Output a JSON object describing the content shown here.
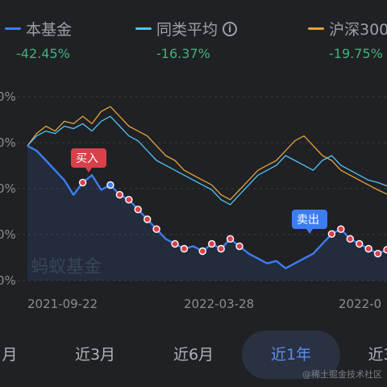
{
  "legend": [
    {
      "label": "本基金",
      "value": "-42.45%",
      "color": "#3d7df0"
    },
    {
      "label": "同类平均",
      "value": "-16.37%",
      "color": "#4fc3f7"
    },
    {
      "label": "沪深300",
      "value": "-19.75%",
      "color": "#e3a33c"
    }
  ],
  "chart": {
    "y_labels": [
      "0%",
      "0%",
      "0%",
      "0%",
      "0%"
    ],
    "x_labels": [
      "2021-09-22",
      "2022-03-28",
      "2022-0"
    ],
    "watermark": "蚂蚁基金",
    "buy_tag": "买入",
    "sell_tag": "卖出"
  },
  "chart_data": {
    "type": "line",
    "series": [
      {
        "name": "本基金",
        "values": [
          0,
          -2,
          -6,
          -10,
          -14,
          -20,
          -15,
          -12,
          -18,
          -16,
          -20,
          -22,
          -26,
          -30,
          -34,
          -38,
          -40,
          -42,
          -41,
          -43,
          -40,
          -42,
          -38,
          -41,
          -44,
          -46,
          -48,
          -47,
          -50,
          -48,
          -46,
          -44,
          -40,
          -36,
          -34,
          -38,
          -40,
          -42,
          -44,
          -42.45
        ]
      },
      {
        "name": "同类平均",
        "values": [
          0,
          4,
          6,
          5,
          8,
          7,
          9,
          6,
          10,
          12,
          8,
          4,
          2,
          -2,
          -6,
          -8,
          -10,
          -12,
          -14,
          -16,
          -18,
          -22,
          -24,
          -20,
          -16,
          -12,
          -10,
          -8,
          -4,
          -6,
          -8,
          -10,
          -6,
          -4,
          -8,
          -10,
          -12,
          -14,
          -15,
          -16.37
        ]
      },
      {
        "name": "沪深300",
        "values": [
          0,
          5,
          8,
          6,
          10,
          9,
          12,
          9,
          14,
          16,
          12,
          8,
          6,
          4,
          0,
          -4,
          -6,
          -10,
          -12,
          -14,
          -16,
          -20,
          -22,
          -18,
          -14,
          -10,
          -8,
          -6,
          -2,
          2,
          4,
          0,
          -4,
          -6,
          -10,
          -12,
          -14,
          -16,
          -18,
          -19.75
        ]
      }
    ],
    "ylim": [
      -55,
      20
    ]
  },
  "tabs": [
    "月",
    "近3月",
    "近6月",
    "近1年",
    "近3"
  ],
  "active_tab": 3,
  "footer": "@稀土掘金技术社区"
}
